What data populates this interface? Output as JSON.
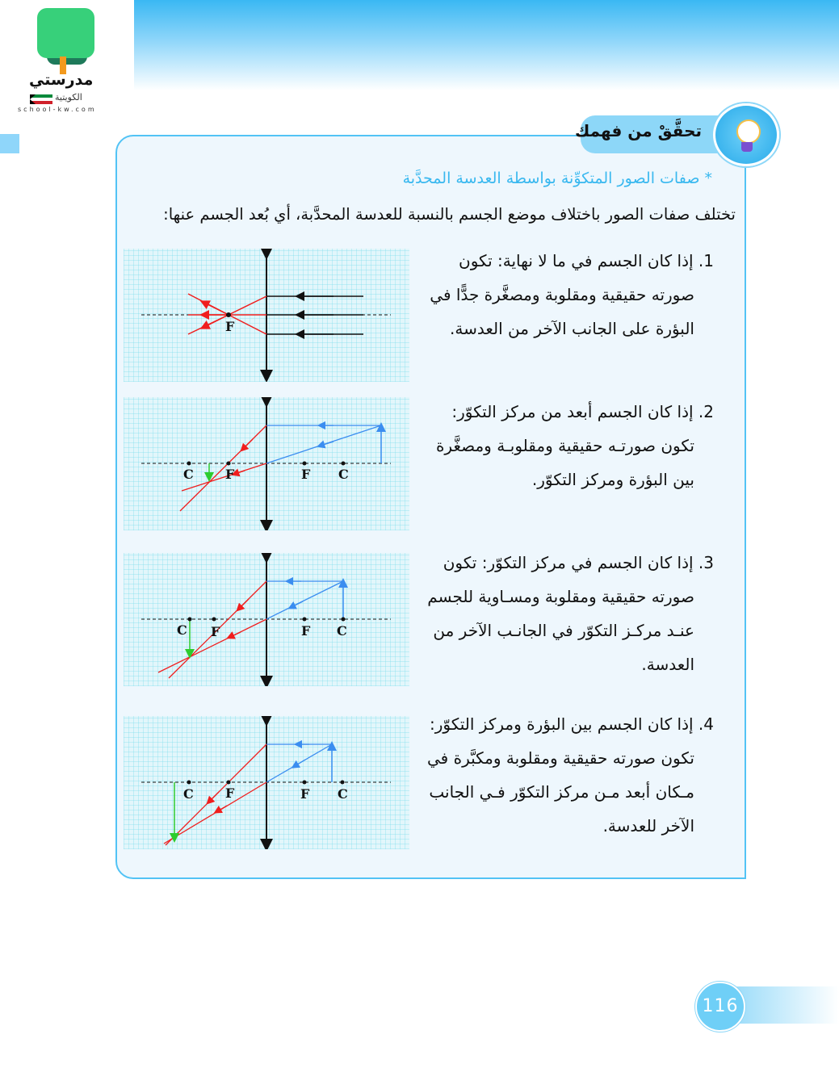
{
  "logo": {
    "name": "مدرستي",
    "sub": "الكويتية",
    "url": "school-kw.com"
  },
  "header": {
    "title": "تحقَّقْ من فهمك",
    "icon": "lightbulb-icon"
  },
  "section": {
    "subtitle": "* صفات الصور المتكوِّنة بواسطة العدسة المحدَّبة",
    "intro": "تختلف صفات الصور باختلاف موضع الجسم بالنسبة للعدسة المحدَّبة، أي بُعد الجسم عنها:"
  },
  "items": [
    {
      "first": "1. إذا كان الجسم في ما لا نهاية: تكون",
      "rest": "صورته حقيقية ومقلوبة ومصغَّرة جدًّا في البؤرة على الجانب الآخر من العدسة."
    },
    {
      "first": "2. إذا كان الجسم أبعد من مركز التكوّر:",
      "rest": "تكون صورتـه حقيقية ومقلوبـة ومصغَّرة بين البؤرة ومركز التكوّر."
    },
    {
      "first": "3. إذا كان الجسم في مركز التكوّر: تكون",
      "rest": "صورته حقيقية ومقلوبة ومسـاوية للجسم عنـد مركـز التكوّر في الجانـب الآخر من العدسة."
    },
    {
      "first": "4. إذا كان الجسم بين البؤرة ومركز التكوّر:",
      "rest": "تكون صورته حقيقية ومقلوبة ومكبَّرة في مـكان أبعد مـن مركز التكوّر فـي الجانب الآخر للعدسة."
    }
  ],
  "diagrams": {
    "labels": {
      "F": "F",
      "C": "C"
    },
    "colors": {
      "incident": "#3b8df0",
      "refracted": "#f01e1e",
      "image": "#2ecc2e",
      "parallel": "#111111"
    }
  },
  "page_number": "116"
}
